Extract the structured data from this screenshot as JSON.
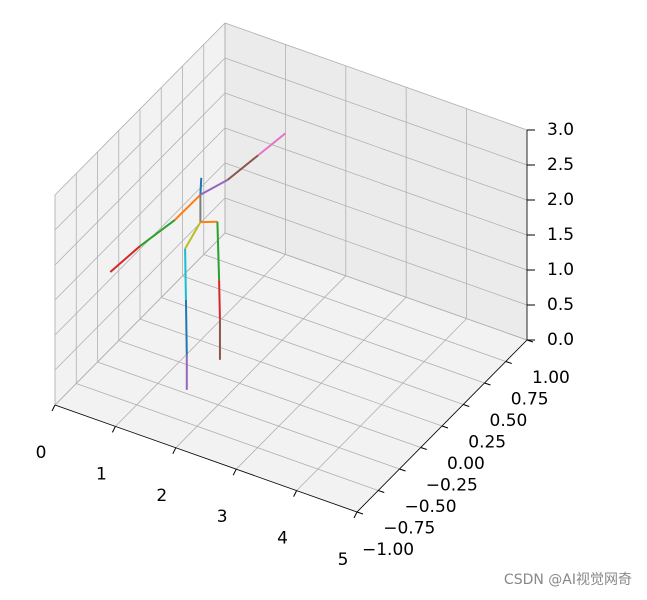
{
  "chart_data": {
    "type": "line3d",
    "xlim": [
      0,
      5
    ],
    "ylim": [
      -1,
      1
    ],
    "zlim": [
      0,
      3
    ],
    "xticks": [
      0,
      1,
      2,
      3,
      4,
      5
    ],
    "yticks": [
      {
        "value": -1,
        "label": "−1.00"
      },
      {
        "value": -0.75,
        "label": "−0.75"
      },
      {
        "value": -0.5,
        "label": "−0.50"
      },
      {
        "value": -0.25,
        "label": "−0.25"
      },
      {
        "value": 0,
        "label": "0.00"
      },
      {
        "value": 0.25,
        "label": "0.25"
      },
      {
        "value": 0.5,
        "label": "0.50"
      },
      {
        "value": 0.75,
        "label": "0.75"
      },
      {
        "value": 1,
        "label": "1.00"
      }
    ],
    "zticks": [
      {
        "value": 0,
        "label": "0.0"
      },
      0.5,
      {
        "value": 1,
        "label": "1.0"
      },
      1.5,
      {
        "value": 2,
        "label": "2.0"
      },
      2.5,
      {
        "value": 3,
        "label": "3.0"
      }
    ],
    "grid": true,
    "series": [
      {
        "color": "#1f77b4",
        "x": [
          1,
          1
        ],
        "y": [
          0.01,
          0
        ],
        "z": [
          2.31,
          2.08
        ]
      },
      {
        "color": "#ff7f0e",
        "x": [
          1,
          1
        ],
        "y": [
          0,
          -0.3
        ],
        "z": [
          2.08,
          2.09
        ]
      },
      {
        "color": "#2ca02c",
        "x": [
          1,
          1
        ],
        "y": [
          -0.3,
          -0.71
        ],
        "z": [
          2.09,
          2.22
        ]
      },
      {
        "color": "#d62728",
        "x": [
          1,
          1
        ],
        "y": [
          -0.71,
          -1.06
        ],
        "z": [
          2.22,
          2.28
        ]
      },
      {
        "color": "#9467bd",
        "x": [
          1,
          1
        ],
        "y": [
          0,
          0.32
        ],
        "z": [
          2.08,
          1.9
        ]
      },
      {
        "color": "#8c564b",
        "x": [
          1,
          1
        ],
        "y": [
          0.32,
          0.68
        ],
        "z": [
          1.9,
          1.81
        ]
      },
      {
        "color": "#e377c2",
        "x": [
          1,
          1
        ],
        "y": [
          0.68,
          1
        ],
        "z": [
          1.81,
          1.73
        ]
      },
      {
        "color": "#7f7f7f",
        "x": [
          1,
          1
        ],
        "y": [
          0,
          0
        ],
        "z": [
          2.08,
          1.69
        ]
      },
      {
        "color": "#bcbd22",
        "x": [
          1,
          1
        ],
        "y": [
          0,
          -0.18
        ],
        "z": [
          1.69,
          1.53
        ]
      },
      {
        "color": "#17becf",
        "x": [
          1,
          1
        ],
        "y": [
          -0.18,
          -0.17
        ],
        "z": [
          1.53,
          0.79
        ]
      },
      {
        "color": "#1f77b4",
        "x": [
          1,
          1
        ],
        "y": [
          -0.17,
          -0.16
        ],
        "z": [
          0.79,
          -0.01
        ]
      },
      {
        "color": "#ff7f0e",
        "x": [
          1,
          1
        ],
        "y": [
          0,
          0.2
        ],
        "z": [
          1.69,
          1.45
        ]
      },
      {
        "color": "#2ca02c",
        "x": [
          1,
          1
        ],
        "y": [
          0.2,
          0.22
        ],
        "z": [
          1.45,
          0.59
        ]
      },
      {
        "color": "#d62728",
        "x": [
          1,
          1
        ],
        "y": [
          0.22,
          0.23
        ],
        "z": [
          0.59,
          0.02
        ]
      },
      {
        "color": "#9467bd",
        "x": [
          1,
          1
        ],
        "y": [
          -0.16,
          -0.16
        ],
        "z": [
          -0.01,
          -0.51
        ]
      },
      {
        "color": "#8c564b",
        "x": [
          1,
          1
        ],
        "y": [
          0.23,
          0.23
        ],
        "z": [
          0.02,
          -0.56
        ]
      }
    ]
  },
  "watermark": "CSDN @AI视觉网奇"
}
